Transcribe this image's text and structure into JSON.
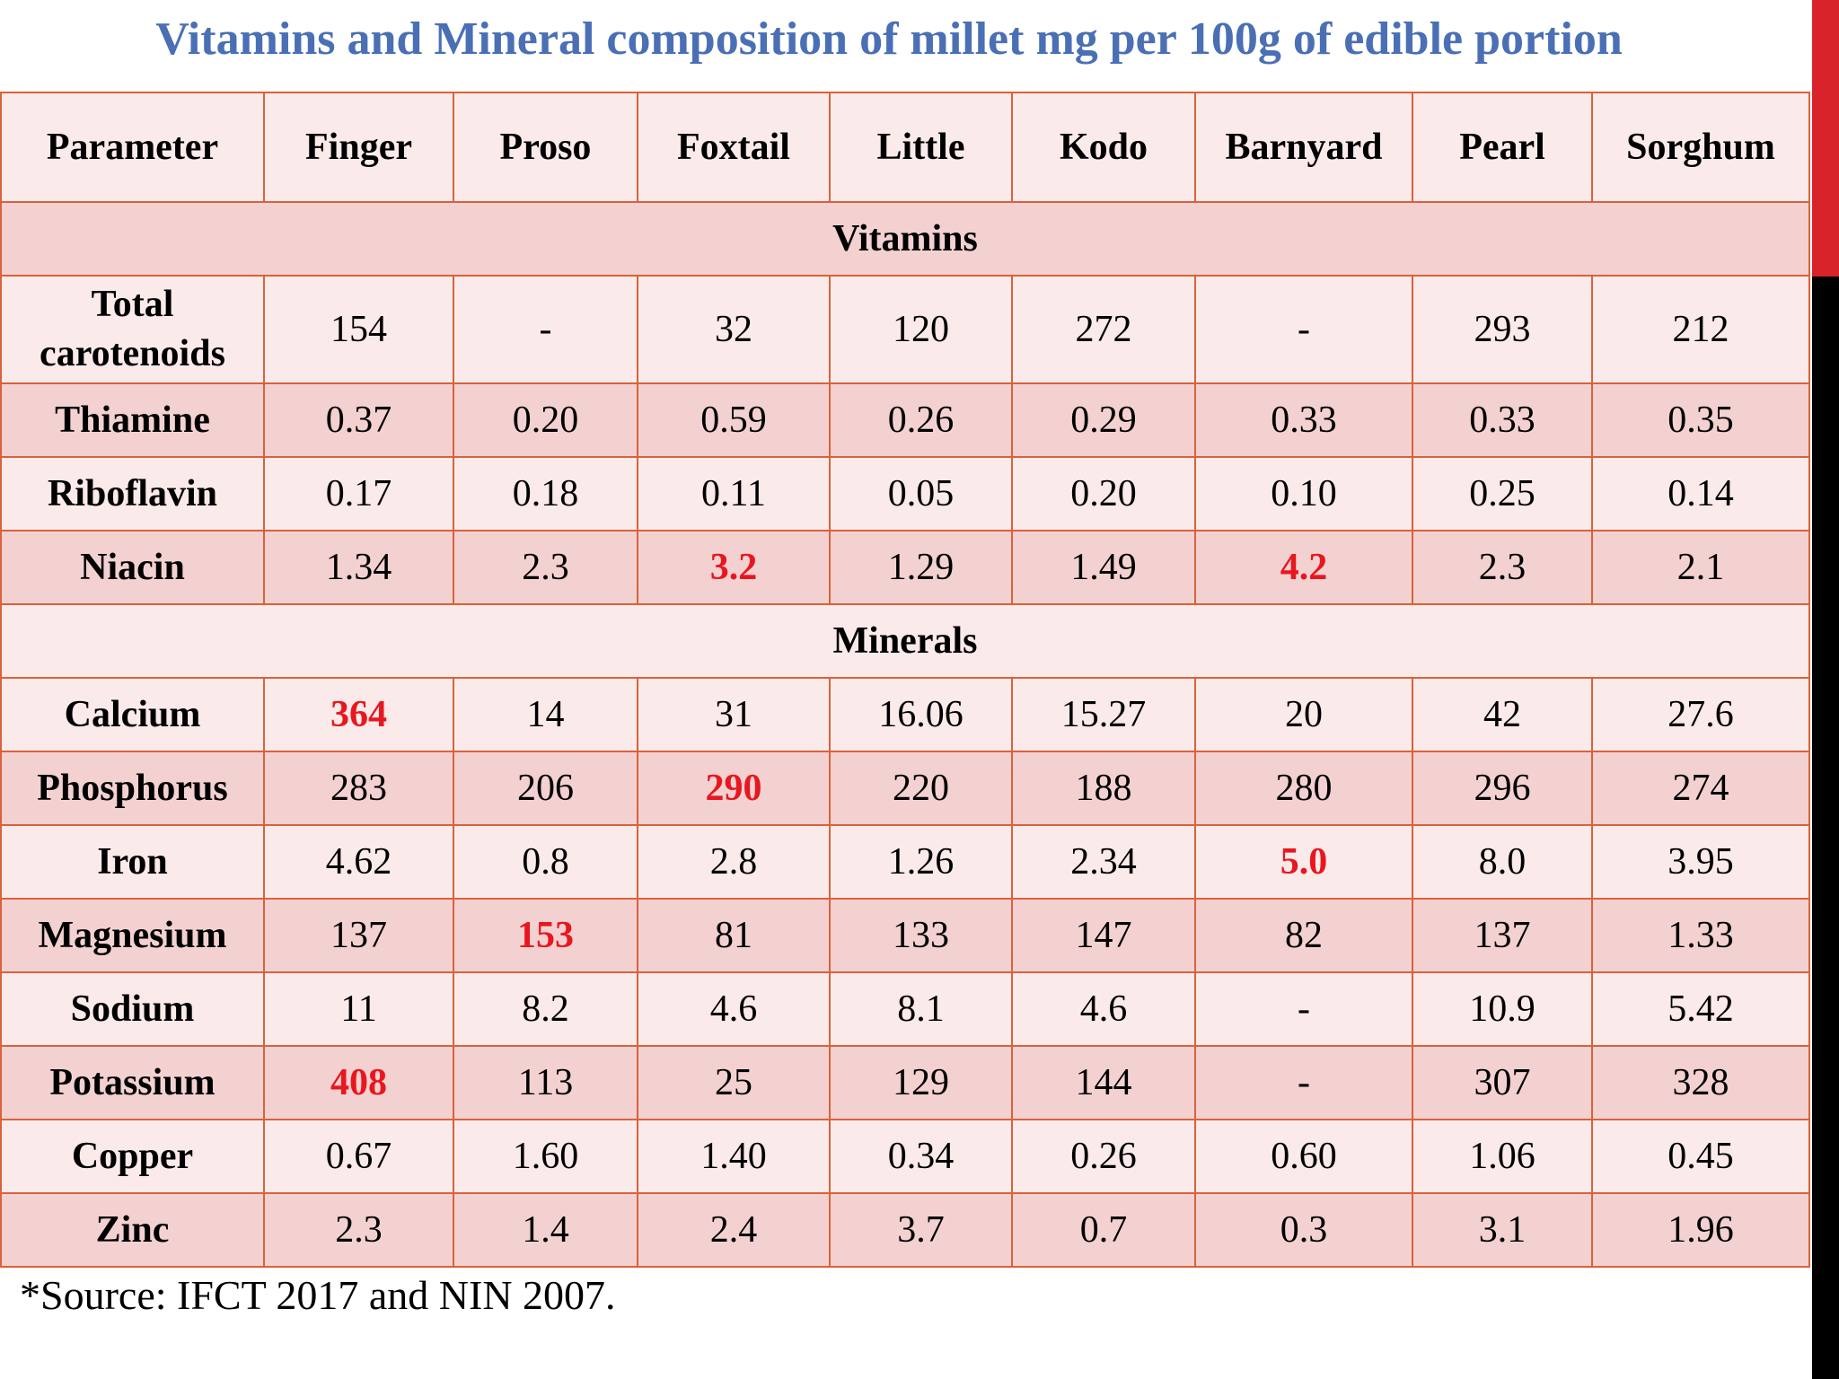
{
  "title": "Vitamins and Mineral composition of millet mg per 100g of edible portion",
  "colors": {
    "title": "#4a6fb5",
    "border": "#d9623a",
    "row_light": "#fbeaea",
    "row_dark": "#f3d1d1",
    "highlight": "#e8171f",
    "accent_red": "#d8232a",
    "accent_black": "#000000"
  },
  "table": {
    "columns": [
      "Parameter",
      "Finger",
      "Proso",
      "Foxtail",
      "Little",
      "Kodo",
      "Barnyard",
      "Pearl",
      "Sorghum"
    ],
    "sections": [
      {
        "label": "Vitamins",
        "rows": [
          {
            "parameter": "Total carotenoids",
            "values": [
              "154",
              "-",
              "32",
              "120",
              "272",
              "-",
              "293",
              "212"
            ],
            "highlight": []
          },
          {
            "parameter": "Thiamine",
            "values": [
              "0.37",
              "0.20",
              "0.59",
              "0.26",
              "0.29",
              "0.33",
              "0.33",
              "0.35"
            ],
            "highlight": []
          },
          {
            "parameter": "Riboflavin",
            "values": [
              "0.17",
              "0.18",
              "0.11",
              "0.05",
              "0.20",
              "0.10",
              "0.25",
              "0.14"
            ],
            "highlight": []
          },
          {
            "parameter": "Niacin",
            "values": [
              "1.34",
              "2.3",
              "3.2",
              "1.29",
              "1.49",
              "4.2",
              "2.3",
              "2.1"
            ],
            "highlight": [
              2,
              5
            ]
          }
        ]
      },
      {
        "label": "Minerals",
        "rows": [
          {
            "parameter": "Calcium",
            "values": [
              "364",
              "14",
              "31",
              "16.06",
              "15.27",
              "20",
              "42",
              "27.6"
            ],
            "highlight": [
              0
            ]
          },
          {
            "parameter": "Phosphorus",
            "values": [
              "283",
              "206",
              "290",
              "220",
              "188",
              "280",
              "296",
              "274"
            ],
            "highlight": [
              2
            ]
          },
          {
            "parameter": "Iron",
            "values": [
              "4.62",
              "0.8",
              "2.8",
              "1.26",
              "2.34",
              "5.0",
              "8.0",
              "3.95"
            ],
            "highlight": [
              5
            ]
          },
          {
            "parameter": "Magnesium",
            "values": [
              "137",
              "153",
              "81",
              "133",
              "147",
              "82",
              "137",
              "1.33"
            ],
            "highlight": [
              1
            ]
          },
          {
            "parameter": "Sodium",
            "values": [
              "11",
              "8.2",
              "4.6",
              "8.1",
              "4.6",
              "-",
              "10.9",
              "5.42"
            ],
            "highlight": []
          },
          {
            "parameter": "Potassium",
            "values": [
              "408",
              "113",
              "25",
              "129",
              "144",
              "-",
              "307",
              "328"
            ],
            "highlight": [
              0
            ]
          },
          {
            "parameter": "Copper",
            "values": [
              "0.67",
              "1.60",
              "1.40",
              "0.34",
              "0.26",
              "0.60",
              "1.06",
              "0.45"
            ],
            "highlight": []
          },
          {
            "parameter": "Zinc",
            "values": [
              "2.3",
              "1.4",
              "2.4",
              "3.7",
              "0.7",
              "0.3",
              "3.1",
              "1.96"
            ],
            "highlight": []
          }
        ]
      }
    ]
  },
  "source_note": "*Source: IFCT 2017 and NIN 2007."
}
